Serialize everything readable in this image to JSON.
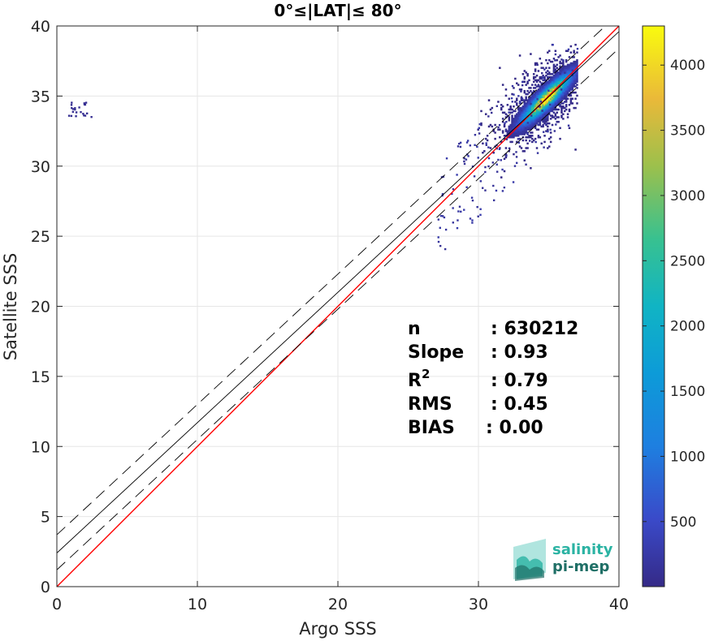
{
  "chart_data": {
    "type": "heatmap",
    "title": "0°≤|LAT|≤ 80°",
    "xlabel": "Argo SSS",
    "ylabel": "Satellite SSS",
    "xlim": [
      0,
      40
    ],
    "ylim": [
      0,
      40
    ],
    "xticks": [
      "0",
      "10",
      "20",
      "30",
      "40"
    ],
    "yticks": [
      "0",
      "5",
      "10",
      "15",
      "20",
      "25",
      "30",
      "35",
      "40"
    ],
    "grid": true,
    "colorbar": {
      "range": [
        1,
        4300
      ],
      "ticks": [
        "500",
        "1000",
        "1500",
        "2000",
        "2500",
        "3000",
        "3500",
        "4000"
      ],
      "tick_values": [
        500,
        1000,
        1500,
        2000,
        2500,
        3000,
        3500,
        4000
      ],
      "colormap": "parula"
    },
    "lines": [
      {
        "name": "identity",
        "slope": 1.0,
        "intercept": 0.0,
        "style": "solid",
        "color": "#ff0000"
      },
      {
        "name": "regression",
        "slope": 0.93,
        "intercept": 2.4,
        "style": "solid",
        "color": "#000000"
      },
      {
        "name": "regression-upper",
        "slope": 0.93,
        "intercept": 3.7,
        "style": "dashed",
        "color": "#000000"
      },
      {
        "name": "regression-lower",
        "slope": 0.93,
        "intercept": 1.2,
        "style": "dashed",
        "color": "#000000"
      }
    ],
    "density": {
      "main_cluster": {
        "center_x": 34.8,
        "center_y": 34.8,
        "x_range": [
          27,
          37
        ],
        "y_range": [
          24,
          39
        ],
        "peak": 4300
      },
      "outlier_cluster": {
        "center_x": 1.6,
        "center_y": 34.1
      }
    },
    "stats": [
      {
        "label": "n",
        "value": ": 630212"
      },
      {
        "label": "Slope",
        "value": ": 0.93"
      },
      {
        "label": "R",
        "sup": "2",
        "value": ": 0.79"
      },
      {
        "label": "RMS",
        "value": ": 0.45"
      },
      {
        "label": "BIAS",
        "value": ": 0.00"
      }
    ]
  },
  "logo": {
    "line1": "salinity",
    "line2": "pi-mep",
    "color1": "#2bb3a3",
    "color2": "#1f6f66"
  }
}
